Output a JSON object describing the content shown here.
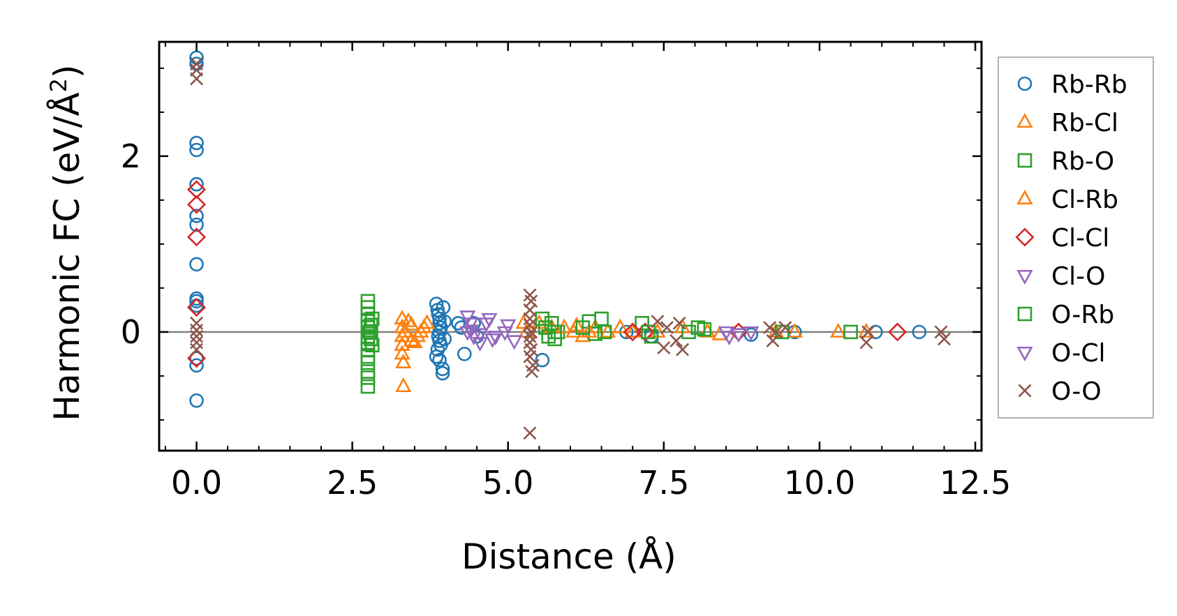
{
  "chart_data": {
    "type": "scatter",
    "xlabel": "Distance (Å)",
    "ylabel_main": "Harmonic FC (eV/Å",
    "ylabel_sup": "2",
    "ylabel_end": ")",
    "xlim": [
      -0.6,
      12.6
    ],
    "ylim": [
      -1.35,
      3.3
    ],
    "x_ticks": [
      0.0,
      2.5,
      5.0,
      7.5,
      10.0,
      12.5
    ],
    "x_tick_labels": [
      "0.0",
      "2.5",
      "5.0",
      "7.5",
      "10.0",
      "12.5"
    ],
    "y_ticks": [
      0,
      2
    ],
    "y_tick_labels": [
      "0",
      "2"
    ],
    "zero_line": 0,
    "legend_position": "right-outside",
    "series": [
      {
        "name": "Rb-Rb",
        "marker": "circle",
        "color": "#1f77b4",
        "points": [
          [
            0,
            3.12
          ],
          [
            0,
            3.05
          ],
          [
            0,
            2.15
          ],
          [
            0,
            2.07
          ],
          [
            0,
            1.68
          ],
          [
            0,
            1.32
          ],
          [
            0,
            1.22
          ],
          [
            0,
            0.77
          ],
          [
            0,
            0.38
          ],
          [
            0,
            0.35
          ],
          [
            0,
            0.3
          ],
          [
            0,
            -0.3
          ],
          [
            0,
            -0.38
          ],
          [
            0,
            -0.78
          ],
          [
            3.85,
            0.32
          ],
          [
            3.87,
            0.25
          ],
          [
            3.88,
            0.2
          ],
          [
            3.9,
            0.15
          ],
          [
            3.9,
            0.1
          ],
          [
            3.92,
            0.05
          ],
          [
            3.9,
            0.0
          ],
          [
            3.88,
            -0.05
          ],
          [
            3.9,
            -0.1
          ],
          [
            3.92,
            -0.15
          ],
          [
            3.87,
            -0.2
          ],
          [
            3.85,
            -0.28
          ],
          [
            3.9,
            -0.32
          ],
          [
            3.95,
            -0.42
          ],
          [
            3.95,
            -0.47
          ],
          [
            3.98,
            0.12
          ],
          [
            3.98,
            -0.08
          ],
          [
            3.96,
            0.28
          ],
          [
            4.2,
            0.1
          ],
          [
            4.25,
            0.05
          ],
          [
            4.3,
            -0.25
          ],
          [
            4.45,
            0.1
          ],
          [
            4.5,
            -0.05
          ],
          [
            5.55,
            -0.32
          ],
          [
            6.9,
            0.0
          ],
          [
            7.3,
            -0.05
          ],
          [
            8.9,
            -0.03
          ],
          [
            9.6,
            0.0
          ],
          [
            10.9,
            0.0
          ],
          [
            11.6,
            0.0
          ]
        ]
      },
      {
        "name": "Rb-Cl",
        "marker": "triangle-up",
        "color": "#ff7f0e",
        "points": [
          [
            3.3,
            0.15
          ],
          [
            3.3,
            0.05
          ],
          [
            3.3,
            -0.05
          ],
          [
            3.3,
            -0.15
          ],
          [
            3.3,
            -0.25
          ],
          [
            3.32,
            -0.35
          ],
          [
            3.32,
            -0.62
          ],
          [
            3.45,
            0.08
          ],
          [
            3.45,
            -0.1
          ],
          [
            3.55,
            -0.05
          ],
          [
            3.65,
            0.05
          ],
          [
            3.7,
            0.1
          ],
          [
            5.25,
            0.1
          ],
          [
            5.3,
            0.0
          ],
          [
            5.5,
            0.1
          ],
          [
            5.7,
            0.05
          ],
          [
            6.05,
            0.0
          ],
          [
            6.1,
            0.07
          ],
          [
            6.2,
            -0.05
          ],
          [
            6.4,
            0.05
          ],
          [
            6.6,
            0.0
          ],
          [
            6.8,
            0.05
          ],
          [
            7.4,
            0.0
          ],
          [
            7.8,
            0.05
          ],
          [
            8.2,
            0.0
          ],
          [
            8.4,
            -0.03
          ],
          [
            9.3,
            0.0
          ],
          [
            9.6,
            0.0
          ],
          [
            10.3,
            0.0
          ],
          [
            10.75,
            0.0
          ]
        ]
      },
      {
        "name": "Rb-O",
        "marker": "square",
        "color": "#2ca02c",
        "points": [
          [
            2.75,
            0.35
          ],
          [
            2.75,
            0.28
          ],
          [
            2.75,
            0.2
          ],
          [
            2.75,
            0.12
          ],
          [
            2.75,
            0.05
          ],
          [
            2.75,
            -0.05
          ],
          [
            2.75,
            -0.12
          ],
          [
            2.75,
            -0.2
          ],
          [
            2.75,
            -0.28
          ],
          [
            2.75,
            -0.35
          ],
          [
            2.75,
            -0.45
          ],
          [
            2.75,
            -0.52
          ],
          [
            2.75,
            -0.62
          ],
          [
            2.8,
            0.08
          ],
          [
            2.8,
            -0.08
          ],
          [
            5.55,
            0.15
          ],
          [
            5.6,
            0.05
          ],
          [
            5.65,
            -0.05
          ],
          [
            5.7,
            0.1
          ],
          [
            5.75,
            -0.08
          ],
          [
            5.8,
            0.0
          ],
          [
            6.3,
            0.12
          ],
          [
            6.4,
            -0.02
          ],
          [
            6.5,
            0.15
          ],
          [
            6.55,
            0.0
          ],
          [
            7.15,
            0.1
          ],
          [
            7.3,
            -0.05
          ],
          [
            8.05,
            0.05
          ],
          [
            9.4,
            0.0
          ],
          [
            10.5,
            0.0
          ]
        ]
      },
      {
        "name": "Cl-Rb",
        "marker": "triangle-up",
        "color": "#ff7f0e",
        "points": [
          [
            3.35,
            0.0
          ],
          [
            3.4,
            0.12
          ],
          [
            3.5,
            -0.12
          ],
          [
            3.6,
            0.0
          ],
          [
            5.9,
            0.05
          ],
          [
            6.3,
            0.0
          ],
          [
            7.0,
            0.0
          ]
        ]
      },
      {
        "name": "Cl-Cl",
        "marker": "diamond",
        "color": "#d62728",
        "points": [
          [
            0,
            1.62
          ],
          [
            0,
            1.45
          ],
          [
            0,
            1.08
          ],
          [
            0,
            0.28
          ],
          [
            0,
            -0.3
          ],
          [
            7.0,
            0.0
          ],
          [
            7.2,
            0.0
          ],
          [
            8.7,
            0.0
          ],
          [
            11.25,
            0.0
          ]
        ]
      },
      {
        "name": "Cl-O",
        "marker": "triangle-down",
        "color": "#9467bd",
        "points": [
          [
            4.35,
            0.18
          ],
          [
            4.4,
            0.1
          ],
          [
            4.4,
            0.02
          ],
          [
            4.45,
            -0.05
          ],
          [
            4.55,
            -0.12
          ],
          [
            4.7,
            0.15
          ],
          [
            4.8,
            -0.05
          ],
          [
            5.0,
            0.08
          ],
          [
            5.1,
            -0.1
          ],
          [
            8.5,
            0.0
          ],
          [
            8.7,
            -0.02
          ],
          [
            8.9,
            0.0
          ]
        ]
      },
      {
        "name": "O-Rb",
        "marker": "square",
        "color": "#2ca02c",
        "points": [
          [
            2.78,
            0.0
          ],
          [
            2.82,
            0.15
          ],
          [
            2.82,
            -0.15
          ],
          [
            5.75,
            0.0
          ],
          [
            6.2,
            0.05
          ],
          [
            7.25,
            0.0
          ],
          [
            7.9,
            0.0
          ],
          [
            8.15,
            0.03
          ]
        ]
      },
      {
        "name": "O-Cl",
        "marker": "triangle-down",
        "color": "#9467bd",
        "points": [
          [
            4.35,
            0.0
          ],
          [
            4.55,
            -0.02
          ],
          [
            4.65,
            0.1
          ],
          [
            4.75,
            -0.08
          ],
          [
            4.95,
            0.0
          ],
          [
            8.55,
            -0.05
          ]
        ]
      },
      {
        "name": "O-O",
        "marker": "x",
        "color": "#8c564b",
        "points": [
          [
            0,
            3.05
          ],
          [
            0,
            2.98
          ],
          [
            0,
            2.88
          ],
          [
            0,
            0.1
          ],
          [
            0,
            0.02
          ],
          [
            0,
            -0.05
          ],
          [
            0,
            -0.12
          ],
          [
            0,
            -0.2
          ],
          [
            5.35,
            0.42
          ],
          [
            5.37,
            0.35
          ],
          [
            5.35,
            0.25
          ],
          [
            5.35,
            0.15
          ],
          [
            5.35,
            0.08
          ],
          [
            5.37,
            0.0
          ],
          [
            5.35,
            -0.05
          ],
          [
            5.35,
            -0.12
          ],
          [
            5.37,
            -0.2
          ],
          [
            5.35,
            -0.28
          ],
          [
            5.4,
            -0.38
          ],
          [
            5.38,
            -0.45
          ],
          [
            5.35,
            -1.15
          ],
          [
            7.4,
            0.12
          ],
          [
            7.5,
            -0.18
          ],
          [
            7.55,
            0.05
          ],
          [
            7.7,
            -0.1
          ],
          [
            7.75,
            0.1
          ],
          [
            7.8,
            -0.2
          ],
          [
            9.2,
            0.05
          ],
          [
            9.25,
            -0.1
          ],
          [
            9.3,
            0.0
          ],
          [
            9.45,
            0.05
          ],
          [
            10.75,
            -0.12
          ],
          [
            10.78,
            0.0
          ],
          [
            11.95,
            0.0
          ],
          [
            12.0,
            -0.08
          ]
        ]
      }
    ]
  }
}
